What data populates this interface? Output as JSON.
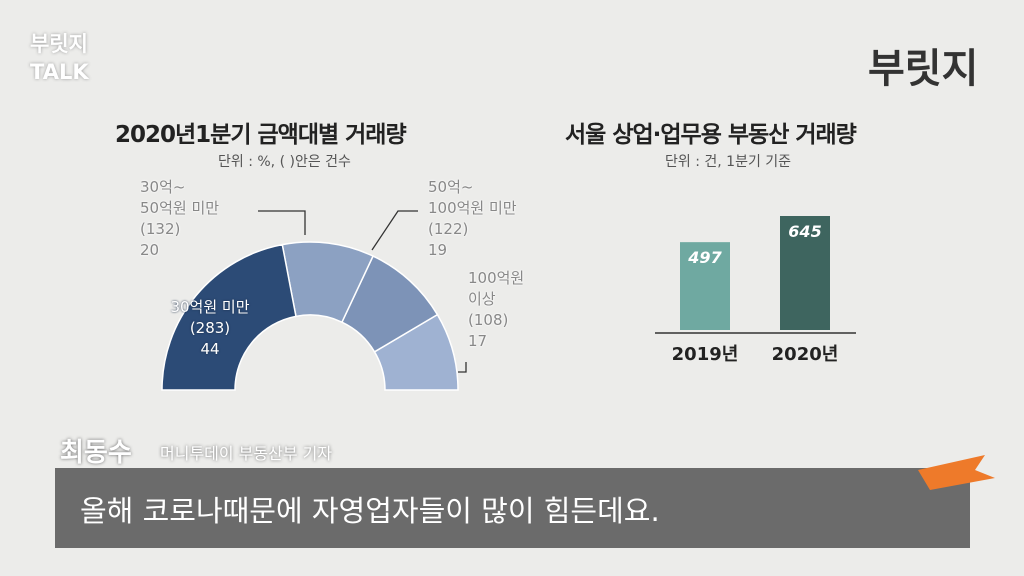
{
  "chart_data": [
    {
      "type": "half-donut",
      "title": "2020년1분기 금액대별 거래량",
      "subtitle": "단위 : %, ( )안은 건수",
      "categories": [
        "30억원 미만",
        "30억~\n50억원 미만",
        "50억~\n100억원 미만",
        "100억원\n이상"
      ],
      "count_labels": [
        "(283)",
        "(132)",
        "(122)",
        "(108)"
      ],
      "values": [
        44,
        20,
        19,
        17
      ],
      "colors": [
        "#2c4b76",
        "#8ca1c2",
        "#7d93b7",
        "#9fb2d2"
      ]
    },
    {
      "type": "bar",
      "title": "서울 상업·업무용 부동산 거래량",
      "subtitle": "단위 : 건, 1분기 기준",
      "categories": [
        "2019년",
        "2020년"
      ],
      "values": [
        497,
        645
      ],
      "colors": [
        "#6fa9a1",
        "#3e655f"
      ]
    }
  ],
  "logo_left": "부릿지\nTALK",
  "logo_right": "부릿지",
  "speaker": {
    "name": "최동수",
    "role": "머니투데이 부동산부 기자"
  },
  "caption": "올해 코로나때문에 자영업자들이 많이 힘든데요."
}
